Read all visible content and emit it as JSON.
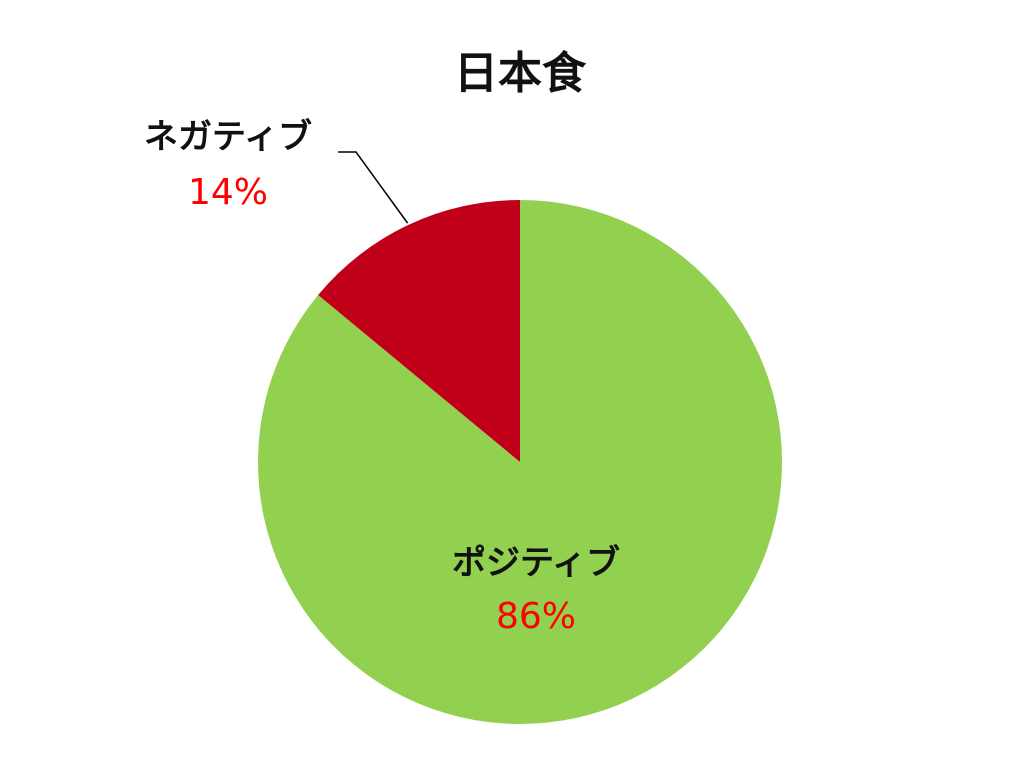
{
  "chart_data": {
    "type": "pie",
    "title": "日本食",
    "slices": [
      {
        "label": "ポジティブ",
        "value": 86,
        "value_text": "86%",
        "color": "#92d050"
      },
      {
        "label": "ネガティブ",
        "value": 14,
        "value_text": "14%",
        "color": "#c00018"
      }
    ],
    "legend": "none"
  },
  "colors": {
    "value_label": "#ff0000",
    "leader_line": "#000000",
    "title": "#111111"
  }
}
